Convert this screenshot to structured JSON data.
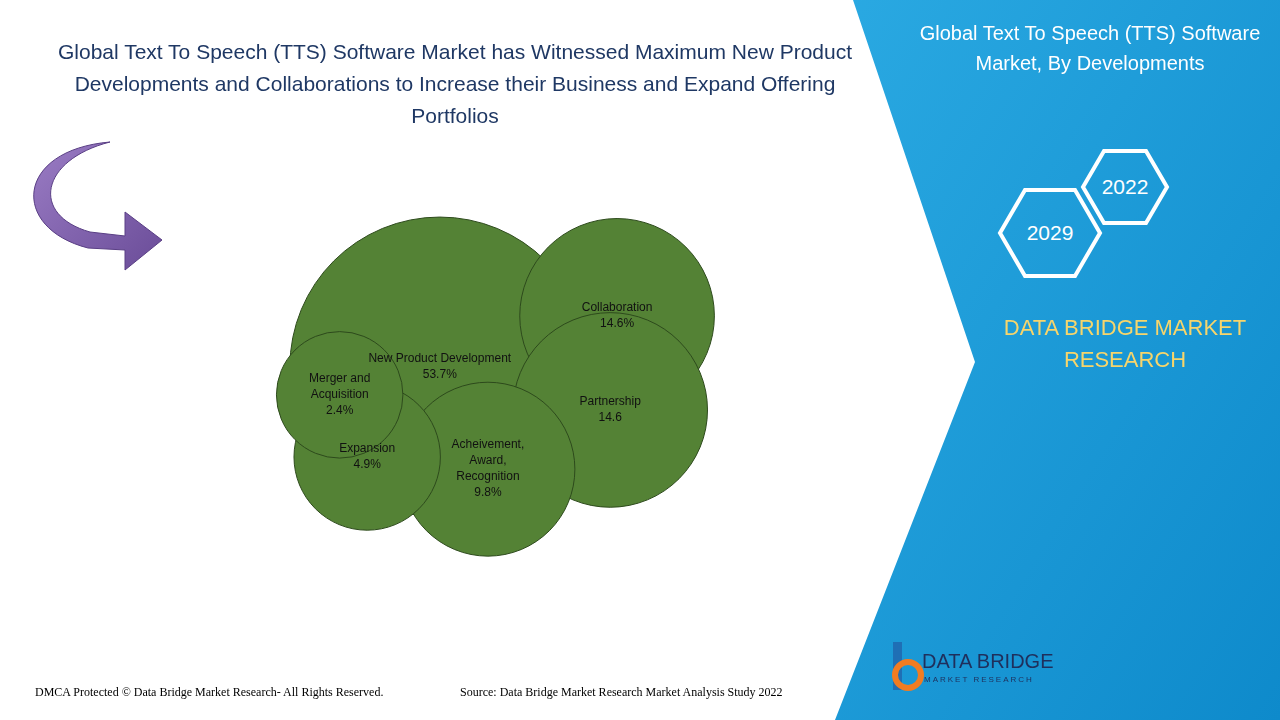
{
  "header": {
    "title": "Global Text To Speech (TTS) Software Market has Witnessed Maximum New Product Developments and Collaborations to Increase their Business and Expand Offering Portfolios"
  },
  "panel": {
    "title": "Global Text To Speech (TTS) Software Market, By Developments",
    "years": [
      "2022",
      "2029"
    ],
    "brand": "DATA BRIDGE MARKET RESEARCH"
  },
  "logo": {
    "name": "DATA BRIDGE",
    "tagline": "MARKET RESEARCH"
  },
  "footer": {
    "copyright": "DMCA Protected © Data Bridge Market Research- All Rights Reserved.",
    "source": "Source: Data Bridge Market Research Market Analysis Study 2022"
  },
  "chart_data": {
    "type": "bubble",
    "categories": [
      "New Product Development",
      "Collaboration",
      "Partnership",
      "Acheivement, Award, Recognition",
      "Expansion",
      "Merger and Acquisition"
    ],
    "values": [
      53.7,
      14.6,
      14.6,
      9.8,
      4.9,
      2.4
    ],
    "value_labels": [
      "53.7%",
      "14.6%",
      "14.6",
      "9.8%",
      "4.9%",
      "2.4%"
    ],
    "color": "#548235",
    "data_labels": true,
    "tick_labels": false,
    "grid": false
  }
}
